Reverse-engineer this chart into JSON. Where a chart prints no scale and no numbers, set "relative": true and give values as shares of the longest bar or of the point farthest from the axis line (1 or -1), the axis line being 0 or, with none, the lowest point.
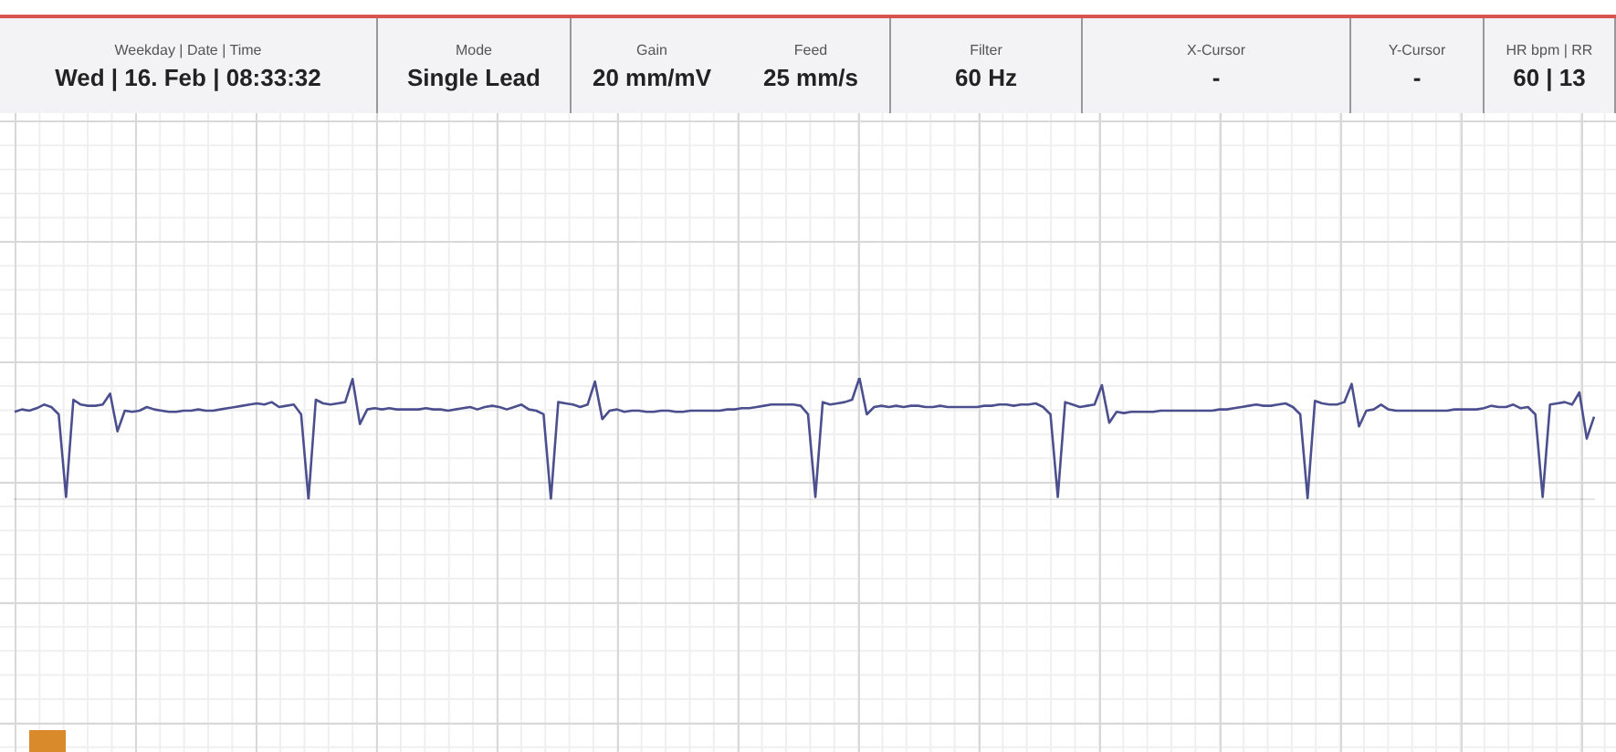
{
  "chart_data": {
    "type": "line",
    "relative": true,
    "color": "#4b4f8e",
    "marker": "none",
    "grid": false,
    "legend": false,
    "annotations": [
      "Weekday | Date | Time",
      "Wed | 16. Feb | 08:33:32",
      "Mode",
      "Single Lead",
      "Gain",
      "20 mm/mV",
      "Feed",
      "25 mm/s",
      "Filter",
      "60 Hz",
      "X-Cursor",
      "-",
      "Y-Cursor",
      "-",
      "HR bpm | RR",
      "60 | 13"
    ],
    "categories": [
      null,
      null,
      null,
      null,
      null,
      null,
      null,
      null,
      null,
      null,
      null,
      null,
      null,
      null,
      null,
      null,
      null,
      null,
      null,
      null,
      null,
      null,
      null,
      null,
      null,
      null,
      null,
      null,
      null,
      null,
      null,
      null,
      null,
      null,
      null,
      null,
      null,
      null,
      null,
      null,
      null,
      null,
      null,
      null,
      null,
      null,
      null,
      null,
      null,
      null,
      null,
      null,
      null,
      null,
      null,
      null,
      null,
      null,
      null,
      null,
      null,
      null,
      null,
      null,
      null,
      null,
      null,
      null,
      null,
      null,
      null,
      null,
      null,
      null,
      null,
      null,
      null,
      null,
      null,
      null,
      null,
      null,
      null,
      null,
      null,
      null,
      null,
      null,
      null,
      null,
      null,
      null,
      null,
      null,
      null,
      null,
      null,
      null,
      null,
      null,
      null,
      null,
      null,
      null,
      null,
      null,
      null,
      null,
      null,
      null,
      null,
      null,
      null,
      null,
      null,
      null,
      null,
      null,
      null,
      null,
      null,
      null,
      null,
      null,
      null,
      null,
      null,
      null,
      null,
      null,
      null,
      null,
      null,
      null,
      null,
      null,
      null,
      null,
      null,
      null,
      null,
      null,
      null,
      null,
      null,
      null,
      null,
      null,
      null,
      null,
      null,
      null,
      null,
      null,
      null,
      null,
      null,
      null,
      null,
      null,
      null,
      null,
      null,
      null,
      null,
      null,
      null,
      null,
      null,
      null,
      null,
      null,
      null,
      null,
      null,
      null,
      null,
      null,
      null,
      null,
      null,
      null,
      null,
      null,
      null,
      null,
      null,
      null,
      null,
      null,
      null,
      null,
      null,
      null,
      null,
      null,
      null,
      null,
      null,
      null,
      null,
      null,
      null,
      null,
      null,
      null,
      null,
      null,
      null,
      null,
      null,
      null,
      null,
      null,
      null,
      null
    ],
    "values": [
      0.72,
      0.74,
      0.73,
      0.75,
      0.78,
      0.76,
      0.7,
      0.02,
      0.82,
      0.78,
      0.77,
      0.77,
      0.78,
      0.87,
      0.56,
      0.73,
      0.72,
      0.73,
      0.76,
      0.74,
      0.73,
      0.72,
      0.72,
      0.73,
      0.73,
      0.74,
      0.73,
      0.73,
      0.74,
      0.75,
      0.76,
      0.77,
      0.78,
      0.79,
      0.78,
      0.8,
      0.76,
      0.77,
      0.78,
      0.7,
      0.0,
      0.82,
      0.79,
      0.78,
      0.79,
      0.8,
      0.99,
      0.62,
      0.74,
      0.75,
      0.74,
      0.75,
      0.74,
      0.74,
      0.74,
      0.74,
      0.75,
      0.74,
      0.74,
      0.73,
      0.74,
      0.75,
      0.76,
      0.74,
      0.76,
      0.77,
      0.76,
      0.74,
      0.76,
      0.78,
      0.74,
      0.73,
      0.7,
      0.0,
      0.8,
      0.79,
      0.78,
      0.76,
      0.78,
      0.97,
      0.66,
      0.73,
      0.74,
      0.72,
      0.73,
      0.73,
      0.72,
      0.72,
      0.73,
      0.73,
      0.72,
      0.72,
      0.73,
      0.73,
      0.73,
      0.73,
      0.73,
      0.74,
      0.74,
      0.75,
      0.75,
      0.76,
      0.77,
      0.78,
      0.78,
      0.78,
      0.78,
      0.77,
      0.7,
      0.02,
      0.8,
      0.78,
      0.79,
      0.8,
      0.82,
      1.0,
      0.7,
      0.76,
      0.77,
      0.76,
      0.77,
      0.76,
      0.77,
      0.77,
      0.76,
      0.76,
      0.77,
      0.76,
      0.76,
      0.76,
      0.76,
      0.76,
      0.77,
      0.77,
      0.78,
      0.78,
      0.77,
      0.78,
      0.78,
      0.79,
      0.76,
      0.7,
      0.02,
      0.8,
      0.78,
      0.76,
      0.77,
      0.78,
      0.94,
      0.63,
      0.72,
      0.71,
      0.72,
      0.72,
      0.72,
      0.72,
      0.73,
      0.73,
      0.73,
      0.73,
      0.73,
      0.73,
      0.73,
      0.73,
      0.74,
      0.74,
      0.75,
      0.76,
      0.77,
      0.78,
      0.77,
      0.77,
      0.78,
      0.79,
      0.76,
      0.7,
      0.01,
      0.81,
      0.79,
      0.78,
      0.78,
      0.8,
      0.95,
      0.6,
      0.73,
      0.74,
      0.78,
      0.74,
      0.73,
      0.73,
      0.73,
      0.73,
      0.73,
      0.73,
      0.73,
      0.73,
      0.74,
      0.74,
      0.74,
      0.74,
      0.75,
      0.77,
      0.76,
      0.76,
      0.78,
      0.75,
      0.76,
      0.7,
      0.02,
      0.78,
      0.79,
      0.8,
      0.78,
      0.88,
      0.5,
      0.68
    ]
  }
}
